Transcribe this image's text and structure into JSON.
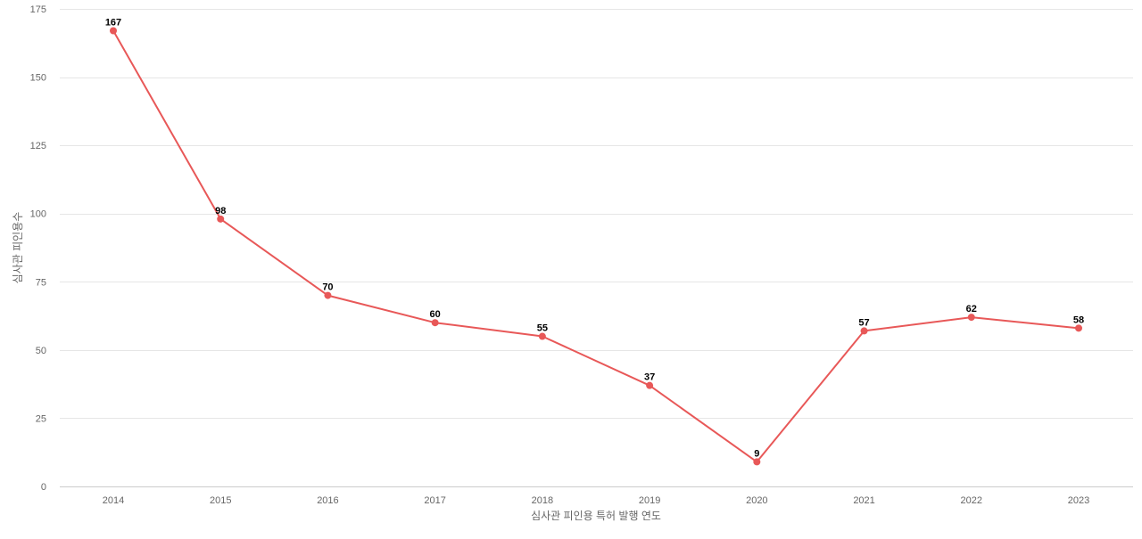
{
  "chart_data": {
    "type": "line",
    "title": "",
    "xlabel": "심사관 피인용 특허 발행 연도",
    "ylabel": "심사관 피인용수",
    "categories": [
      "2014",
      "2015",
      "2016",
      "2017",
      "2018",
      "2019",
      "2020",
      "2021",
      "2022",
      "2023"
    ],
    "series": [
      {
        "values": [
          167,
          98,
          70,
          60,
          55,
          37,
          9,
          57,
          62,
          58
        ],
        "color": "#e85858"
      }
    ],
    "ylim": [
      0,
      175
    ],
    "yticks": [
      0,
      25,
      50,
      75,
      100,
      125,
      150,
      175
    ],
    "grid": true,
    "legend": "none",
    "data_labels": true
  }
}
